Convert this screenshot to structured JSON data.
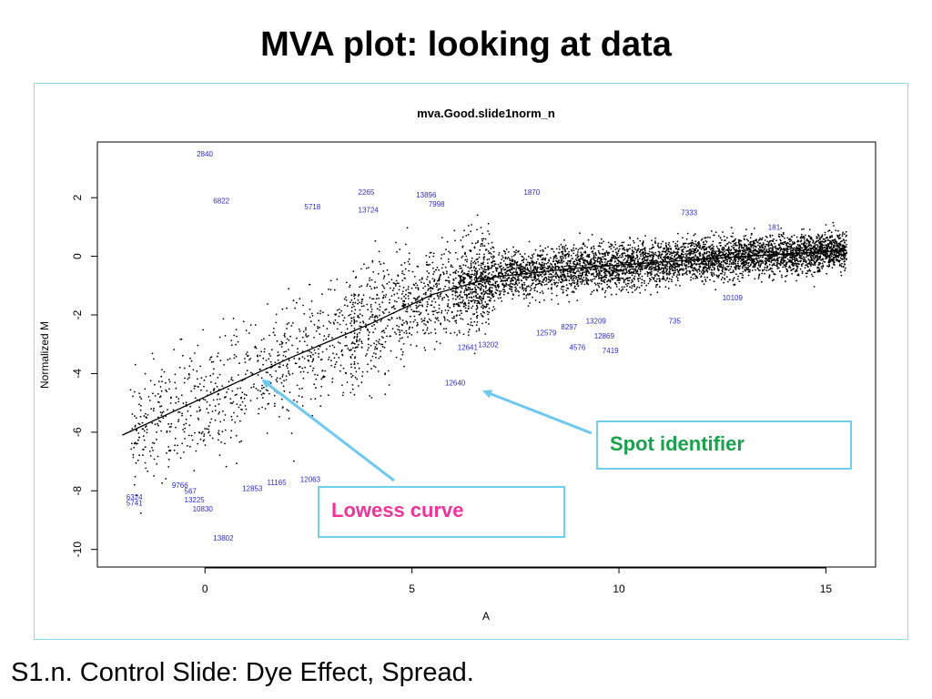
{
  "slide": {
    "title": "MVA plot: looking at data",
    "caption": "S1.n.  Control Slide: Dye Effect, Spread."
  },
  "callouts": {
    "spot_identifier": "Spot identifier",
    "lowess_curve": "Lowess curve"
  },
  "colors": {
    "point": "#000000",
    "spot_label": "#2b2bd0",
    "arrow": "#6fc8ee",
    "spot_callout_text": "#1aa14b",
    "lowess_callout_text": "#f0349a",
    "frame_border": "#8fd8ee"
  },
  "chart_data": {
    "type": "scatter",
    "title": "mva.Good.slide1norm_n",
    "xlabel": "A",
    "ylabel": "Normalized M",
    "xlim": [
      -2.6,
      16.2
    ],
    "ylim": [
      -10.6,
      3.9
    ],
    "xticks": [
      0,
      5,
      10,
      15
    ],
    "yticks": [
      -10,
      -8,
      -6,
      -4,
      -2,
      0,
      2
    ],
    "grid": false,
    "lowess_curve": [
      [
        -2,
        -6.1
      ],
      [
        0,
        -4.8
      ],
      [
        2,
        -3.5
      ],
      [
        4,
        -2.3
      ],
      [
        5.5,
        -1.3
      ],
      [
        7,
        -0.7
      ],
      [
        9,
        -0.4
      ],
      [
        11,
        -0.2
      ],
      [
        13,
        0
      ],
      [
        15.5,
        0.2
      ]
    ],
    "labeled_spots": [
      {
        "id": "2840",
        "x": -0.2,
        "y": 3.4
      },
      {
        "id": "6822",
        "x": 0.2,
        "y": 1.8
      },
      {
        "id": "5718",
        "x": 2.4,
        "y": 1.6
      },
      {
        "id": "2265",
        "x": 3.7,
        "y": 2.1
      },
      {
        "id": "13724",
        "x": 3.7,
        "y": 1.5
      },
      {
        "id": "13896",
        "x": 5.1,
        "y": 2.0
      },
      {
        "id": "7998",
        "x": 5.4,
        "y": 1.7
      },
      {
        "id": "1870",
        "x": 7.7,
        "y": 2.1
      },
      {
        "id": "7333",
        "x": 11.5,
        "y": 1.4
      },
      {
        "id": "181",
        "x": 13.6,
        "y": 0.9
      },
      {
        "id": "735",
        "x": 11.2,
        "y": -2.3
      },
      {
        "id": "10109",
        "x": 12.5,
        "y": -1.5
      },
      {
        "id": "13209",
        "x": 9.2,
        "y": -2.3
      },
      {
        "id": "8297",
        "x": 8.6,
        "y": -2.5
      },
      {
        "id": "12579",
        "x": 8.0,
        "y": -2.7
      },
      {
        "id": "12869",
        "x": 9.4,
        "y": -2.8
      },
      {
        "id": "4576",
        "x": 8.8,
        "y": -3.2
      },
      {
        "id": "7419",
        "x": 9.6,
        "y": -3.3
      },
      {
        "id": "13202",
        "x": 6.6,
        "y": -3.1
      },
      {
        "id": "12641",
        "x": 6.1,
        "y": -3.2
      },
      {
        "id": "12640",
        "x": 5.8,
        "y": -4.4
      },
      {
        "id": "9766",
        "x": -0.8,
        "y": -7.9
      },
      {
        "id": "567",
        "x": -0.5,
        "y": -8.1
      },
      {
        "id": "13225",
        "x": -0.5,
        "y": -8.4
      },
      {
        "id": "10830",
        "x": -0.3,
        "y": -8.7
      },
      {
        "id": "6324",
        "x": -1.9,
        "y": -8.3
      },
      {
        "id": "5741",
        "x": -1.9,
        "y": -8.5
      },
      {
        "id": "12853",
        "x": 0.9,
        "y": -8.0
      },
      {
        "id": "11165",
        "x": 1.5,
        "y": -7.8
      },
      {
        "id": "12063",
        "x": 2.3,
        "y": -7.7
      },
      {
        "id": "13802",
        "x": 0.2,
        "y": -9.7
      }
    ]
  }
}
